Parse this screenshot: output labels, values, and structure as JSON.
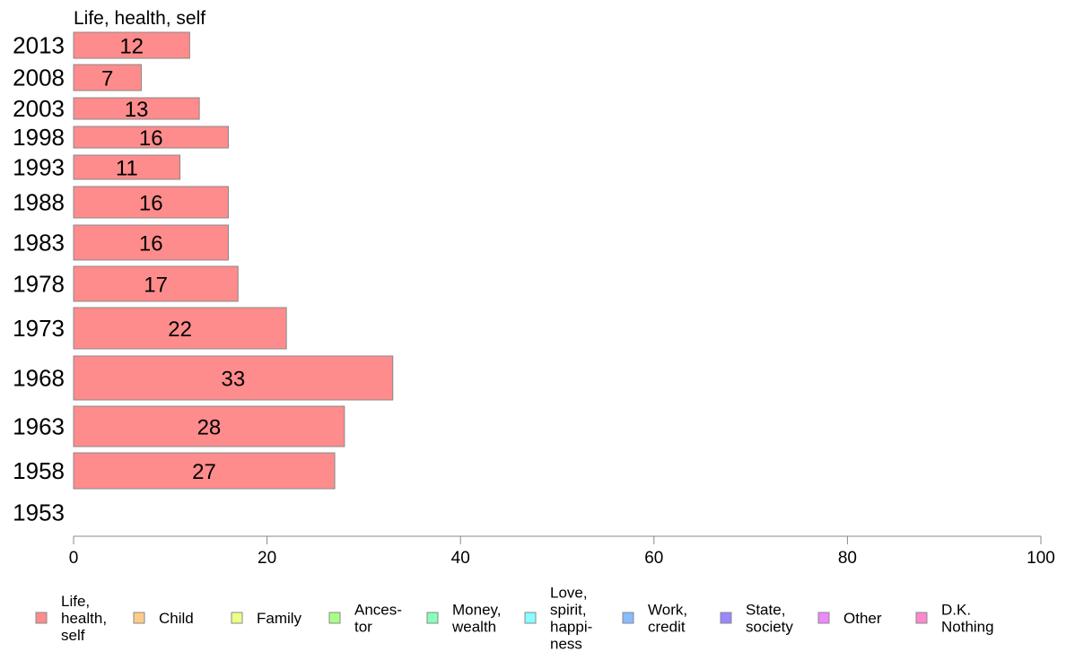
{
  "chart_data": {
    "type": "bar",
    "orientation": "horizontal",
    "title": "Life, health, self",
    "categories": [
      "2013",
      "2008",
      "2003",
      "1998",
      "1993",
      "1988",
      "1983",
      "1978",
      "1973",
      "1968",
      "1963",
      "1958",
      "1953"
    ],
    "series": [
      {
        "name": "Life, health, self",
        "color": "#ff8c8c",
        "values": [
          12,
          7,
          13,
          16,
          11,
          16,
          16,
          17,
          22,
          33,
          28,
          27,
          null
        ]
      }
    ],
    "xlim": [
      0,
      100
    ],
    "xticks": [
      0,
      20,
      40,
      60,
      80,
      100
    ],
    "grid": false,
    "legend_position": "bottom",
    "legend": [
      {
        "lines": [
          "Life,",
          "health,",
          "self"
        ],
        "color": "#ff8c8c"
      },
      {
        "lines": [
          "Child"
        ],
        "color": "#ffcc88"
      },
      {
        "lines": [
          "Family"
        ],
        "color": "#eeff88"
      },
      {
        "lines": [
          "Ances-",
          "tor"
        ],
        "color": "#aaff88"
      },
      {
        "lines": [
          "Money,",
          "wealth"
        ],
        "color": "#88ffbb"
      },
      {
        "lines": [
          "Love,",
          "spirit,",
          "happi-",
          "ness"
        ],
        "color": "#88ffff"
      },
      {
        "lines": [
          "Work,",
          "credit"
        ],
        "color": "#88bbff"
      },
      {
        "lines": [
          "State,",
          "society"
        ],
        "color": "#9988ff"
      },
      {
        "lines": [
          "Other"
        ],
        "color": "#ee88ff"
      },
      {
        "lines": [
          "D.K.",
          "Nothing"
        ],
        "color": "#ff88cc"
      }
    ]
  }
}
